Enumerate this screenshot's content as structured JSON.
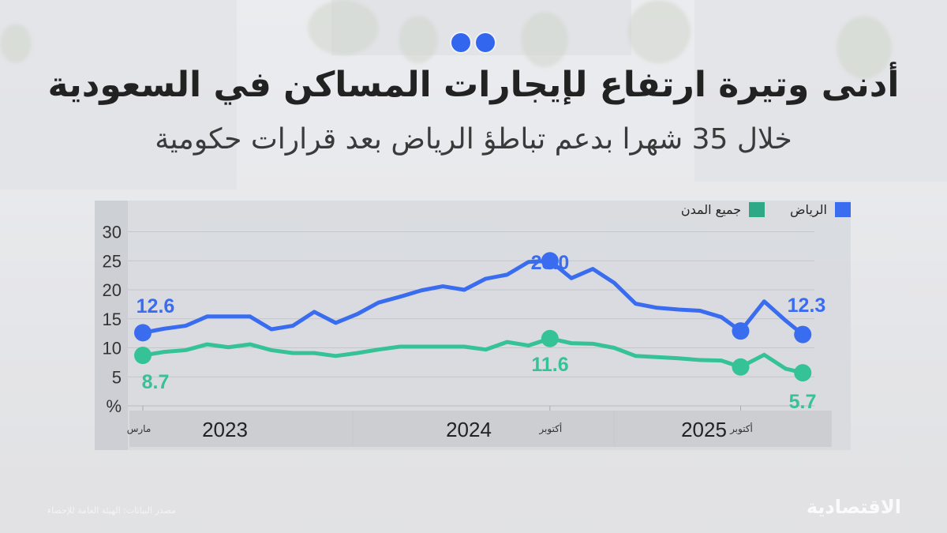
{
  "header": {
    "title": "أدنى وتيرة ارتفاع لإيجارات المساكن في السعودية",
    "subtitle": "خلال 35 شهرا بدعم تباطؤ الرياض بعد قرارات حكومية"
  },
  "legend": {
    "riyadh": {
      "label": "الرياض",
      "color": "#3a6cf0"
    },
    "all_cities": {
      "label": "جميع المدن",
      "color": "#2fa886"
    }
  },
  "footer": {
    "source": "مصدر البيانات: الهيئة العامة للإحصاء",
    "logo": "الاقتصادية"
  },
  "colors": {
    "blue": "#3a6cf0",
    "green": "#35c296",
    "grid": "#c4c6ca"
  },
  "chart_data": {
    "type": "line",
    "title": "أدنى وتيرة ارتفاع لإيجارات المساكن في السعودية",
    "subtitle": "خلال 35 شهرا بدعم تباطؤ الرياض بعد قرارات حكومية",
    "xlabel": "",
    "ylabel": "%",
    "ylim": [
      0,
      30
    ],
    "yticks": [
      5,
      10,
      15,
      20,
      25,
      30
    ],
    "y_unit_label": "%",
    "grid": true,
    "legend_position": "top-right",
    "x_groups": [
      {
        "label": "2023",
        "start": 0,
        "end": 9.7
      },
      {
        "label": "2024",
        "start": 9.9,
        "end": 21.9
      },
      {
        "label": "2025",
        "start": 22.1,
        "end": 32
      }
    ],
    "x_tick_labels": [
      {
        "index": 0,
        "label": "مارس"
      },
      {
        "index": 19,
        "label": "أكتوبر"
      },
      {
        "index": 27.9,
        "label": "أكتوبر"
      }
    ],
    "x": [
      0,
      1,
      2,
      3,
      4,
      5,
      6,
      7,
      8,
      9,
      10,
      11,
      12,
      13,
      14,
      15,
      16,
      17,
      18,
      19,
      20,
      21,
      22,
      23,
      24,
      25,
      26,
      27,
      27.9,
      29,
      30,
      30.8
    ],
    "series": [
      {
        "name": "الرياض",
        "color": "#3a6cf0",
        "values": [
          12.6,
          13.3,
          13.8,
          15.4,
          15.4,
          15.4,
          13.2,
          13.8,
          16.2,
          14.3,
          15.8,
          17.8,
          18.8,
          19.9,
          20.6,
          20.0,
          21.9,
          22.6,
          24.8,
          25.0,
          22.0,
          23.6,
          21.2,
          17.6,
          16.9,
          16.6,
          16.4,
          15.3,
          12.9,
          18.0,
          14.7,
          12.3
        ],
        "annotations": [
          {
            "index": 0,
            "label": "12.6"
          },
          {
            "index": 19,
            "label": "25.0"
          },
          {
            "index": 31,
            "label": "12.3"
          }
        ],
        "markers": [
          0,
          19,
          28,
          31
        ]
      },
      {
        "name": "جميع المدن",
        "color": "#35c296",
        "values": [
          8.7,
          9.3,
          9.6,
          10.6,
          10.1,
          10.6,
          9.6,
          9.1,
          9.1,
          8.6,
          9.1,
          9.7,
          10.2,
          10.2,
          10.2,
          10.2,
          9.7,
          11.0,
          10.4,
          11.6,
          10.8,
          10.7,
          10.0,
          8.6,
          8.4,
          8.2,
          7.9,
          7.8,
          6.7,
          8.8,
          6.4,
          5.7
        ],
        "annotations": [
          {
            "index": 0,
            "label": "8.7"
          },
          {
            "index": 19,
            "label": "11.6"
          },
          {
            "index": 31,
            "label": "5.7"
          }
        ],
        "markers": [
          0,
          19,
          28,
          31
        ]
      }
    ]
  }
}
